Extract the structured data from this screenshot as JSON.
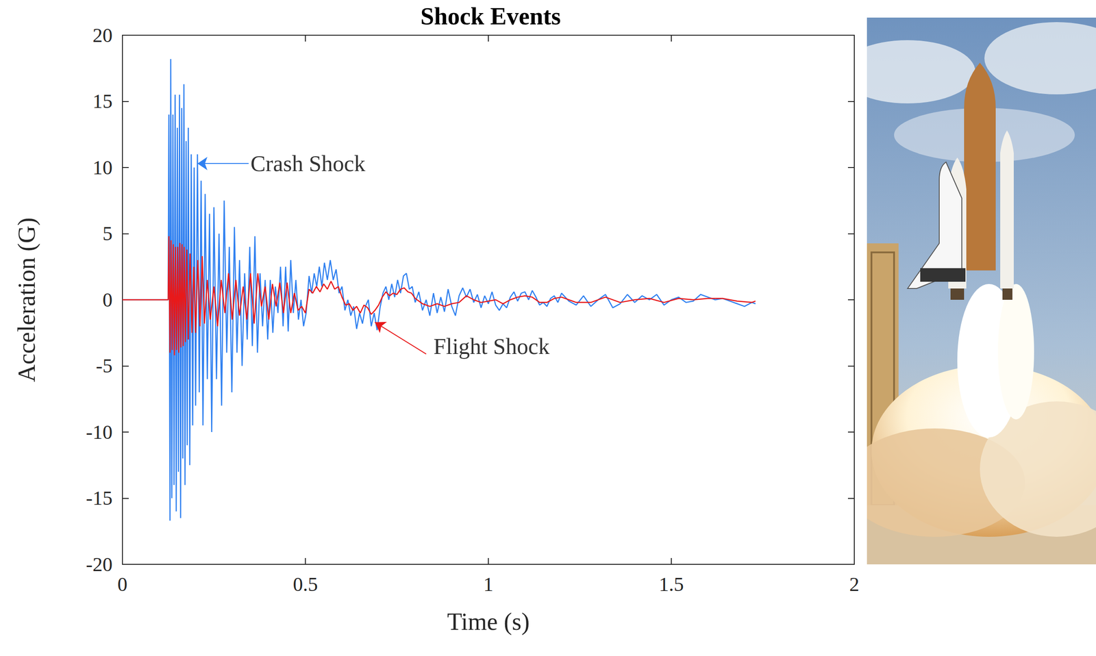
{
  "chart_data": {
    "type": "line",
    "title": "Shock Events",
    "x_label": "Time (s)",
    "y_label": "Acceleration (G)",
    "xlim": [
      0,
      2
    ],
    "xticks": [
      0,
      0.5,
      1,
      1.5,
      2
    ],
    "ylim": [
      -20,
      20
    ],
    "yticks": [
      -20,
      -15,
      -10,
      -5,
      0,
      5,
      10,
      15,
      20
    ],
    "grid": false,
    "series": [
      {
        "name": "Crash Shock",
        "color": "#2f80f0",
        "x": [
          0,
          0.12,
          0.125,
          0.127,
          0.13,
          0.132,
          0.135,
          0.138,
          0.141,
          0.144,
          0.147,
          0.15,
          0.153,
          0.156,
          0.159,
          0.162,
          0.165,
          0.168,
          0.171,
          0.174,
          0.177,
          0.18,
          0.184,
          0.188,
          0.192,
          0.196,
          0.2,
          0.205,
          0.21,
          0.215,
          0.22,
          0.226,
          0.232,
          0.238,
          0.244,
          0.25,
          0.257,
          0.264,
          0.271,
          0.278,
          0.285,
          0.292,
          0.299,
          0.306,
          0.313,
          0.32,
          0.327,
          0.334,
          0.341,
          0.348,
          0.355,
          0.362,
          0.369,
          0.376,
          0.383,
          0.39,
          0.397,
          0.404,
          0.411,
          0.418,
          0.425,
          0.432,
          0.439,
          0.446,
          0.453,
          0.46,
          0.467,
          0.474,
          0.481,
          0.488,
          0.495,
          0.502,
          0.51,
          0.517,
          0.524,
          0.531,
          0.538,
          0.545,
          0.552,
          0.56,
          0.568,
          0.576,
          0.584,
          0.592,
          0.6,
          0.608,
          0.616,
          0.624,
          0.632,
          0.64,
          0.648,
          0.656,
          0.664,
          0.672,
          0.68,
          0.688,
          0.696,
          0.704,
          0.712,
          0.72,
          0.728,
          0.736,
          0.744,
          0.752,
          0.76,
          0.768,
          0.776,
          0.784,
          0.792,
          0.8,
          0.81,
          0.82,
          0.83,
          0.84,
          0.85,
          0.86,
          0.87,
          0.88,
          0.89,
          0.9,
          0.91,
          0.92,
          0.93,
          0.94,
          0.95,
          0.96,
          0.97,
          0.98,
          0.99,
          1.0,
          1.01,
          1.02,
          1.03,
          1.04,
          1.05,
          1.06,
          1.07,
          1.08,
          1.09,
          1.1,
          1.11,
          1.12,
          1.13,
          1.14,
          1.15,
          1.16,
          1.17,
          1.18,
          1.19,
          1.2,
          1.22,
          1.24,
          1.26,
          1.28,
          1.3,
          1.32,
          1.34,
          1.36,
          1.38,
          1.4,
          1.42,
          1.44,
          1.46,
          1.48,
          1.5,
          1.52,
          1.54,
          1.56,
          1.58,
          1.6,
          1.62,
          1.64,
          1.66,
          1.68,
          1.7,
          1.72,
          1.73
        ],
        "values": [
          0,
          0,
          0,
          14,
          -16.7,
          18.2,
          -15,
          14,
          -14,
          15.5,
          -16,
          13,
          -13,
          15.5,
          -16.5,
          14.5,
          -12,
          16.3,
          -14,
          12,
          -11,
          13,
          -12.5,
          11,
          -9.5,
          10,
          -8,
          11,
          -7,
          9,
          -9.5,
          8,
          -6,
          6.5,
          -10,
          7,
          -6,
          5,
          -8,
          7.5,
          -4,
          4,
          -7,
          5.5,
          -4,
          3,
          -5,
          2,
          -3,
          4,
          -3.5,
          4.8,
          -4,
          2,
          -2,
          1.5,
          -3,
          1.5,
          -2.5,
          1,
          -1,
          2.5,
          -2,
          2.5,
          -2.4,
          3,
          -1,
          1.5,
          -1.5,
          0,
          -2,
          -1,
          1.8,
          0.5,
          2,
          1,
          2.5,
          1,
          2.8,
          1.5,
          3,
          1.5,
          2.3,
          0.5,
          1,
          -0.8,
          0,
          -1.2,
          -0.5,
          -2.2,
          -1,
          -1.8,
          -0.5,
          0,
          -2,
          -1,
          -2.3,
          -0.6,
          0.5,
          1,
          0,
          1.2,
          0.2,
          1.5,
          0.5,
          1.8,
          2,
          0.8,
          1,
          -0.2,
          0.6,
          -0.8,
          0,
          -1.2,
          0.5,
          -1,
          0.2,
          -0.9,
          0.8,
          -0.5,
          -1.2,
          0.3,
          0.9,
          0.2,
          0.8,
          -0.2,
          0.4,
          -0.6,
          0.3,
          -0.3,
          0.6,
          -0.4,
          -0.8,
          -0.3,
          -0.6,
          0.2,
          0.6,
          -0.1,
          0.5,
          0.6,
          0,
          0.7,
          0.2,
          -0.4,
          -0.2,
          -0.5,
          0.1,
          0.3,
          -0.2,
          0.5,
          -0.1,
          -0.4,
          0.3,
          -0.5,
          0,
          0.4,
          -0.6,
          -0.3,
          0.4,
          -0.2,
          0.3,
          0,
          0.4,
          -0.4,
          0,
          0.2,
          -0.2,
          -0.1,
          0.4,
          0.2,
          0,
          0.1,
          -0.1,
          -0.3,
          -0.5,
          -0.2,
          -0.3
        ]
      },
      {
        "name": "Flight Shock",
        "color": "#e8191a",
        "x": [
          0,
          0.12,
          0.125,
          0.127,
          0.13,
          0.133,
          0.136,
          0.139,
          0.142,
          0.145,
          0.148,
          0.151,
          0.154,
          0.157,
          0.16,
          0.163,
          0.166,
          0.169,
          0.172,
          0.176,
          0.18,
          0.185,
          0.19,
          0.195,
          0.2,
          0.206,
          0.212,
          0.218,
          0.224,
          0.232,
          0.24,
          0.25,
          0.26,
          0.27,
          0.28,
          0.29,
          0.3,
          0.31,
          0.32,
          0.33,
          0.34,
          0.35,
          0.36,
          0.37,
          0.38,
          0.39,
          0.4,
          0.41,
          0.42,
          0.43,
          0.44,
          0.45,
          0.46,
          0.47,
          0.48,
          0.49,
          0.5,
          0.51,
          0.52,
          0.53,
          0.54,
          0.55,
          0.56,
          0.57,
          0.58,
          0.59,
          0.6,
          0.61,
          0.62,
          0.63,
          0.64,
          0.65,
          0.66,
          0.67,
          0.68,
          0.69,
          0.7,
          0.71,
          0.72,
          0.73,
          0.74,
          0.75,
          0.76,
          0.77,
          0.78,
          0.79,
          0.8,
          0.82,
          0.84,
          0.86,
          0.88,
          0.9,
          0.92,
          0.94,
          0.96,
          0.98,
          1.0,
          1.02,
          1.04,
          1.06,
          1.08,
          1.1,
          1.12,
          1.14,
          1.16,
          1.18,
          1.2,
          1.24,
          1.28,
          1.32,
          1.36,
          1.4,
          1.44,
          1.48,
          1.52,
          1.56,
          1.6,
          1.64,
          1.68,
          1.72,
          1.73
        ],
        "values": [
          0,
          0,
          0,
          4.8,
          -4,
          4.5,
          -3.8,
          4.2,
          -4.2,
          4,
          -3.8,
          4,
          -4,
          4.3,
          -3.6,
          4.2,
          -3.5,
          4,
          -3.2,
          3.8,
          -3,
          3.5,
          -2.5,
          2.5,
          -2.5,
          3,
          -2,
          3.3,
          -1.8,
          1.5,
          -1.5,
          1,
          -2,
          1.5,
          -1,
          2,
          -1.5,
          1.5,
          -1.2,
          1,
          -1.5,
          2,
          -1.8,
          2,
          -0.5,
          1,
          -1.5,
          1.2,
          -0.5,
          1.3,
          -1,
          1.3,
          -1,
          0.5,
          -0.8,
          -0.5,
          -1,
          0.8,
          0.5,
          1,
          0.6,
          1.2,
          0.8,
          1.4,
          0.8,
          1,
          0.2,
          -0.4,
          -0.3,
          -0.8,
          -0.5,
          -1,
          -0.4,
          -0.6,
          -1.1,
          -0.8,
          -0.4,
          0.2,
          0.6,
          0.3,
          0.5,
          0.4,
          0.8,
          0.9,
          0.6,
          0.5,
          0.1,
          -0.3,
          -0.5,
          -0.3,
          -0.5,
          -0.3,
          -0.2,
          0.3,
          0,
          -0.2,
          -0.1,
          0,
          -0.3,
          0,
          0.2,
          0.3,
          0.2,
          -0.2,
          -0.2,
          0.1,
          0.2,
          -0.2,
          -0.2,
          0.2,
          -0.2,
          0,
          0.1,
          -0.2,
          0.1,
          0,
          0.1,
          0.1,
          -0.1,
          -0.2,
          -0.1
        ]
      }
    ],
    "annotations": [
      {
        "text": "Crash Shock",
        "series": "Crash Shock",
        "x": 0.35,
        "y": 10.3,
        "arrow_from": [
          0.345,
          10.3
        ],
        "arrow_to": [
          0.205,
          10.3
        ]
      },
      {
        "text": "Flight Shock",
        "series": "Flight Shock",
        "x": 0.85,
        "y": -3.5,
        "arrow_from": [
          0.83,
          -4.1
        ],
        "arrow_to": [
          0.69,
          -1.7
        ]
      }
    ]
  }
}
